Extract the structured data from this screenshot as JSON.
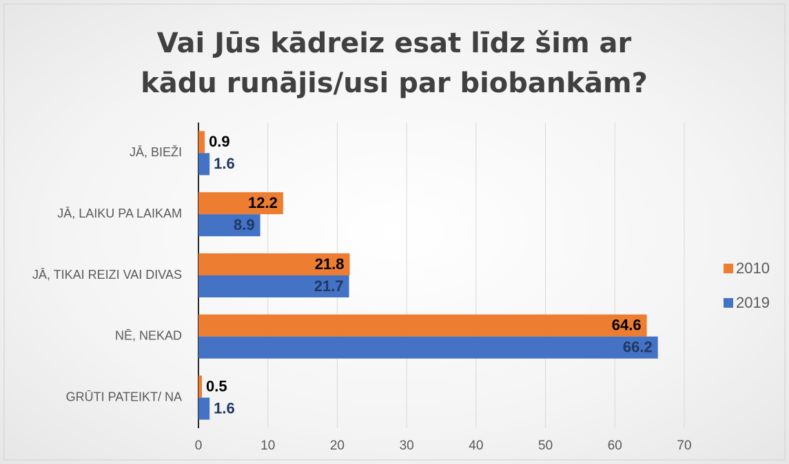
{
  "chart_data": {
    "type": "bar",
    "orientation": "horizontal",
    "title": "Vai Jūs kādreiz esat līdz šim ar kādu runājis/usi par biobankām?",
    "categories": [
      "JĀ, BIEŽI",
      "JĀ, LAIKU PA LAIKAM",
      "JĀ, TIKAI REIZI VAI DIVAS",
      "NĒ, NEKAD",
      "GRŪTI PATEIKT/ NA"
    ],
    "series": [
      {
        "name": "2010",
        "color": "#ed7d31",
        "label_color": "#000000",
        "values": [
          0.9,
          12.2,
          21.8,
          64.6,
          0.5
        ]
      },
      {
        "name": "2019",
        "color": "#4472c4",
        "label_color": "#203864",
        "values": [
          1.6,
          8.9,
          21.7,
          66.2,
          1.6
        ]
      }
    ],
    "xlim": [
      0,
      70
    ],
    "xticks": [
      0,
      10,
      20,
      30,
      40,
      50,
      60,
      70
    ],
    "grid": true,
    "legend": "right"
  }
}
